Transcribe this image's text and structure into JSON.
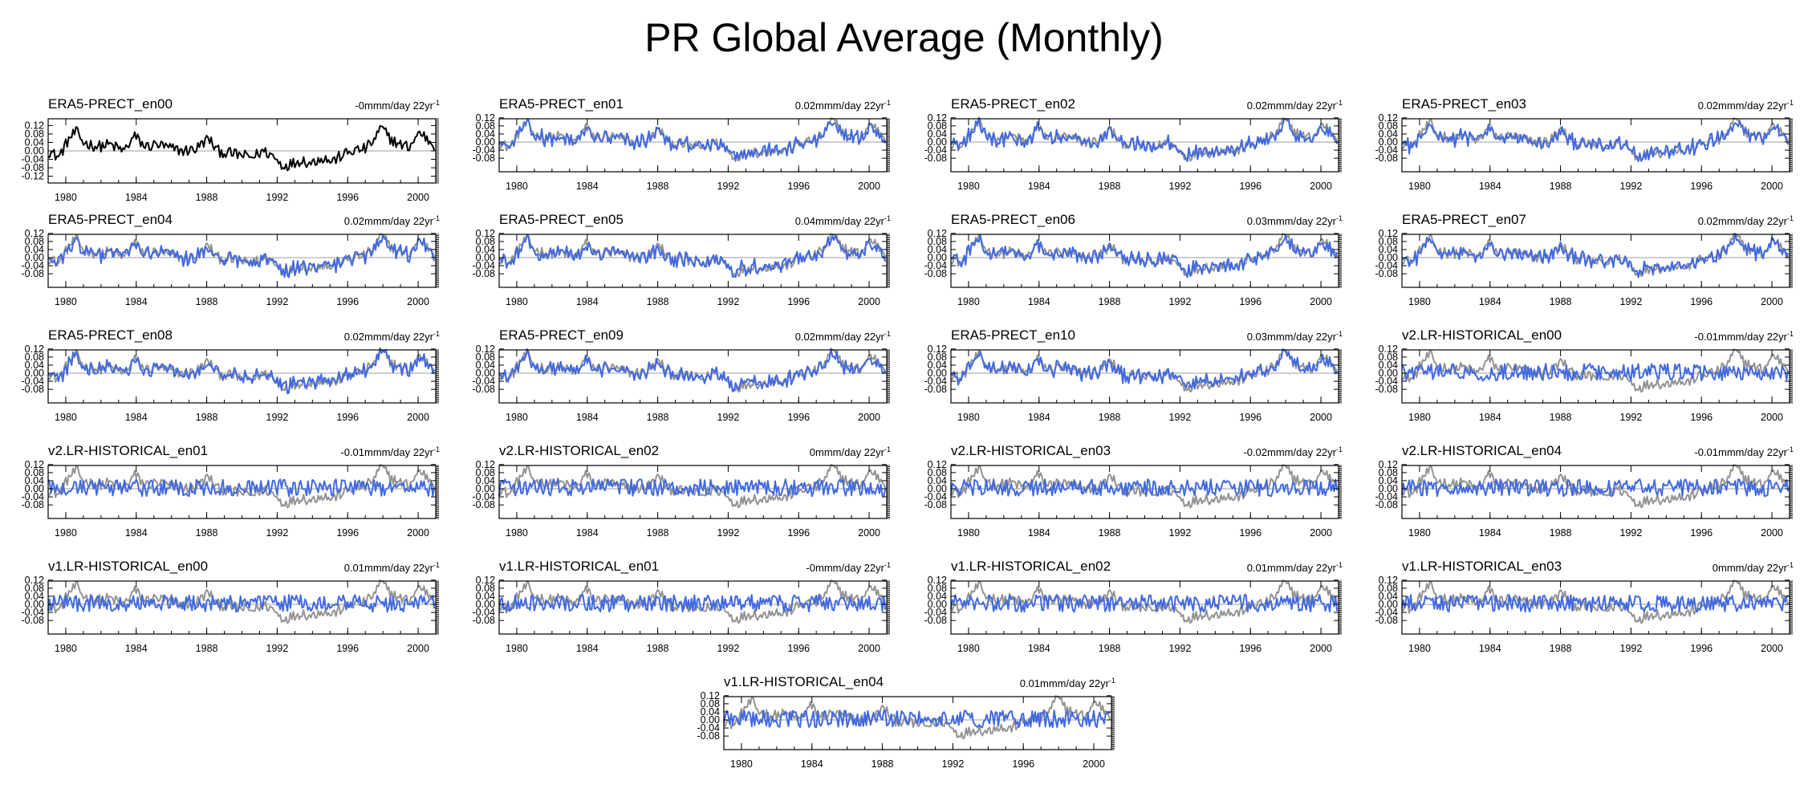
{
  "title": "PR Global Average (Monthly)",
  "colors": {
    "reference": "#000000",
    "reference_overlay": "#939393",
    "member": "#4169e1",
    "zero_line": "#9e9e9e"
  },
  "chart_data": {
    "type": "line",
    "x_range": [
      1979,
      2001
    ],
    "x_ticks": [
      "1980",
      "1984",
      "1988",
      "1992",
      "1996",
      "2000"
    ],
    "y_ticks_first": [
      "0.12",
      "0.08",
      "0.04",
      "0.00",
      "-0.04",
      "-0.08",
      "-0.12"
    ],
    "y_ticks": [
      "0.12",
      "0.08",
      "0.04",
      "0.00",
      "-0.04",
      "-0.08"
    ],
    "trend_unit": "mm/day 22yr",
    "trend_exp": "-1",
    "reference_anchors": {
      "x": [
        1979.0,
        1979.6,
        1980.2,
        1980.6,
        1981.0,
        1981.8,
        1982.5,
        1983.3,
        1983.9,
        1984.5,
        1985.2,
        1986.0,
        1986.7,
        1987.4,
        1988.1,
        1988.6,
        1989.2,
        1989.9,
        1990.6,
        1991.2,
        1991.7,
        1992.3,
        1992.9,
        1993.4,
        1993.9,
        1994.5,
        1995.1,
        1995.7,
        1996.3,
        1997.0,
        1997.5,
        1997.9,
        1998.4,
        1998.9,
        1999.5,
        2000.1,
        2000.6,
        2001.0
      ],
      "y": [
        0.0,
        -0.03,
        0.06,
        0.09,
        0.04,
        0.02,
        0.03,
        0.0,
        0.07,
        0.02,
        0.03,
        0.01,
        0.0,
        0.01,
        0.06,
        0.0,
        -0.01,
        -0.02,
        -0.03,
        0.0,
        -0.02,
        -0.07,
        -0.06,
        -0.04,
        -0.06,
        -0.03,
        -0.05,
        -0.02,
        0.0,
        0.01,
        0.05,
        0.11,
        0.06,
        0.03,
        0.02,
        0.09,
        0.05,
        0.02
      ]
    },
    "panels": [
      {
        "name": "ERA5-PRECT_en00",
        "trend": "-0m",
        "reference_only": true
      },
      {
        "name": "ERA5-PRECT_en01",
        "trend": "0.02m"
      },
      {
        "name": "ERA5-PRECT_en02",
        "trend": "0.02m"
      },
      {
        "name": "ERA5-PRECT_en03",
        "trend": "0.02m"
      },
      {
        "name": "ERA5-PRECT_en04",
        "trend": "0.02m"
      },
      {
        "name": "ERA5-PRECT_en05",
        "trend": "0.04m"
      },
      {
        "name": "ERA5-PRECT_en06",
        "trend": "0.03m"
      },
      {
        "name": "ERA5-PRECT_en07",
        "trend": "0.02m"
      },
      {
        "name": "ERA5-PRECT_en08",
        "trend": "0.02m"
      },
      {
        "name": "ERA5-PRECT_en09",
        "trend": "0.02m"
      },
      {
        "name": "ERA5-PRECT_en10",
        "trend": "0.03m"
      },
      {
        "name": "v2.LR-HISTORICAL_en00",
        "trend": "-0.01m"
      },
      {
        "name": "v2.LR-HISTORICAL_en01",
        "trend": "-0.01m"
      },
      {
        "name": "v2.LR-HISTORICAL_en02",
        "trend": "0m"
      },
      {
        "name": "v2.LR-HISTORICAL_en03",
        "trend": "-0.02m"
      },
      {
        "name": "v2.LR-HISTORICAL_en04",
        "trend": "-0.01m"
      },
      {
        "name": "v1.LR-HISTORICAL_en00",
        "trend": "0.01m"
      },
      {
        "name": "v1.LR-HISTORICAL_en01",
        "trend": "-0m"
      },
      {
        "name": "v1.LR-HISTORICAL_en02",
        "trend": "0.01m"
      },
      {
        "name": "v1.LR-HISTORICAL_en03",
        "trend": "0m"
      },
      {
        "name": "v1.LR-HISTORICAL_en04",
        "trend": "0.01m"
      }
    ]
  }
}
